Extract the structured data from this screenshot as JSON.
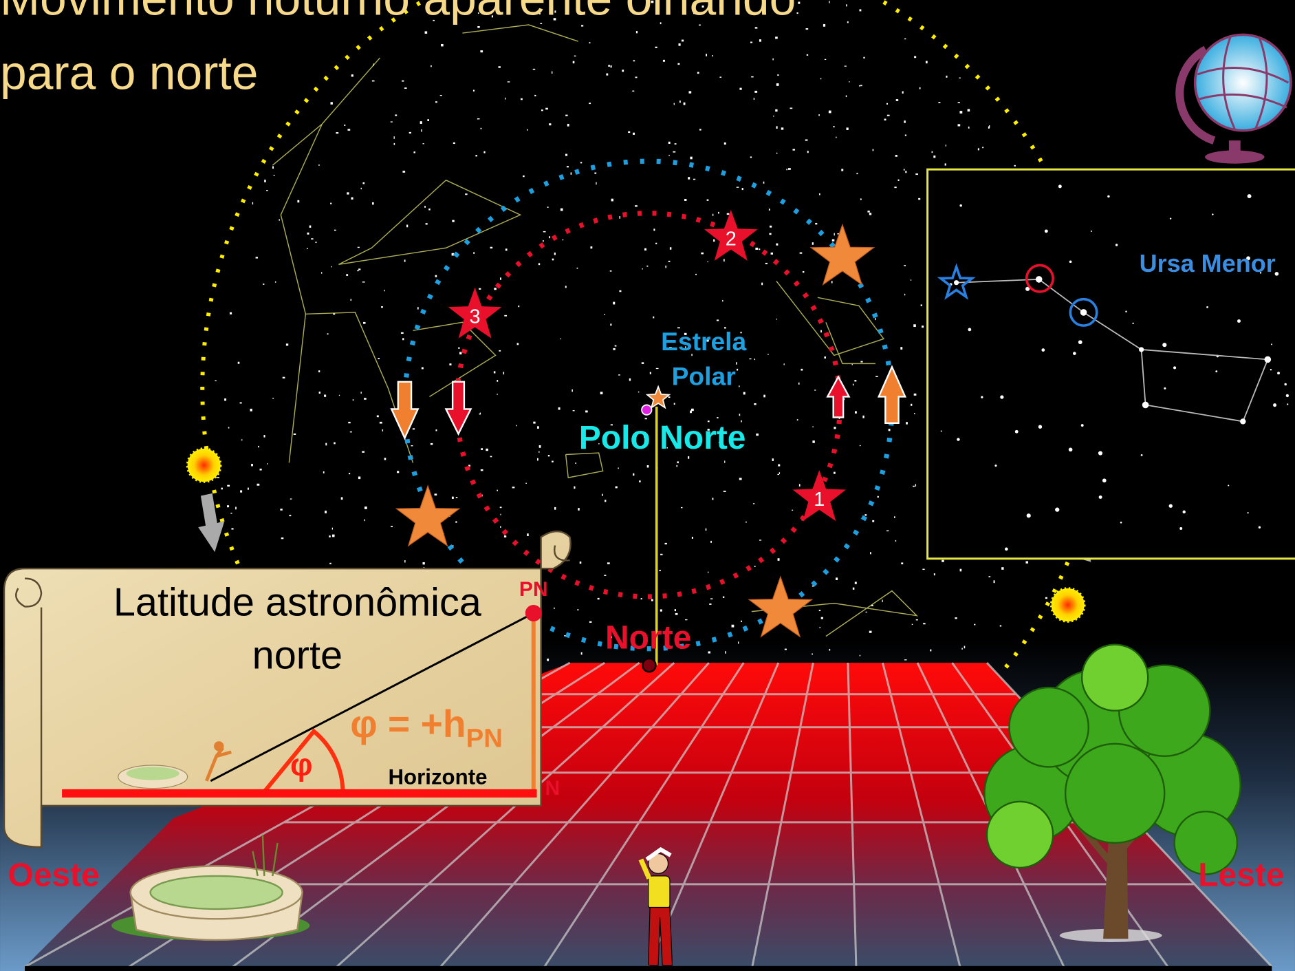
{
  "title": {
    "lines": [
      "Movimento noturno aparente olhando",
      "para o norte"
    ]
  },
  "sky": {
    "polar_star": [
      "Estrela",
      "Polar"
    ],
    "north_pole": "Polo Norte",
    "north": "Norte",
    "star_labels": [
      1,
      2,
      3
    ]
  },
  "inset": {
    "title": "Ursa Menor"
  },
  "scroll": {
    "title": [
      "Latitude astronômica",
      "norte"
    ],
    "zenith_label": "PN",
    "north_label": "N",
    "horizon": "Horizonte",
    "angle_symbol": "φ",
    "formula": "φ = +h",
    "formula_subscript": "PN"
  },
  "directions": {
    "west": "Oeste",
    "east": "Leste"
  }
}
